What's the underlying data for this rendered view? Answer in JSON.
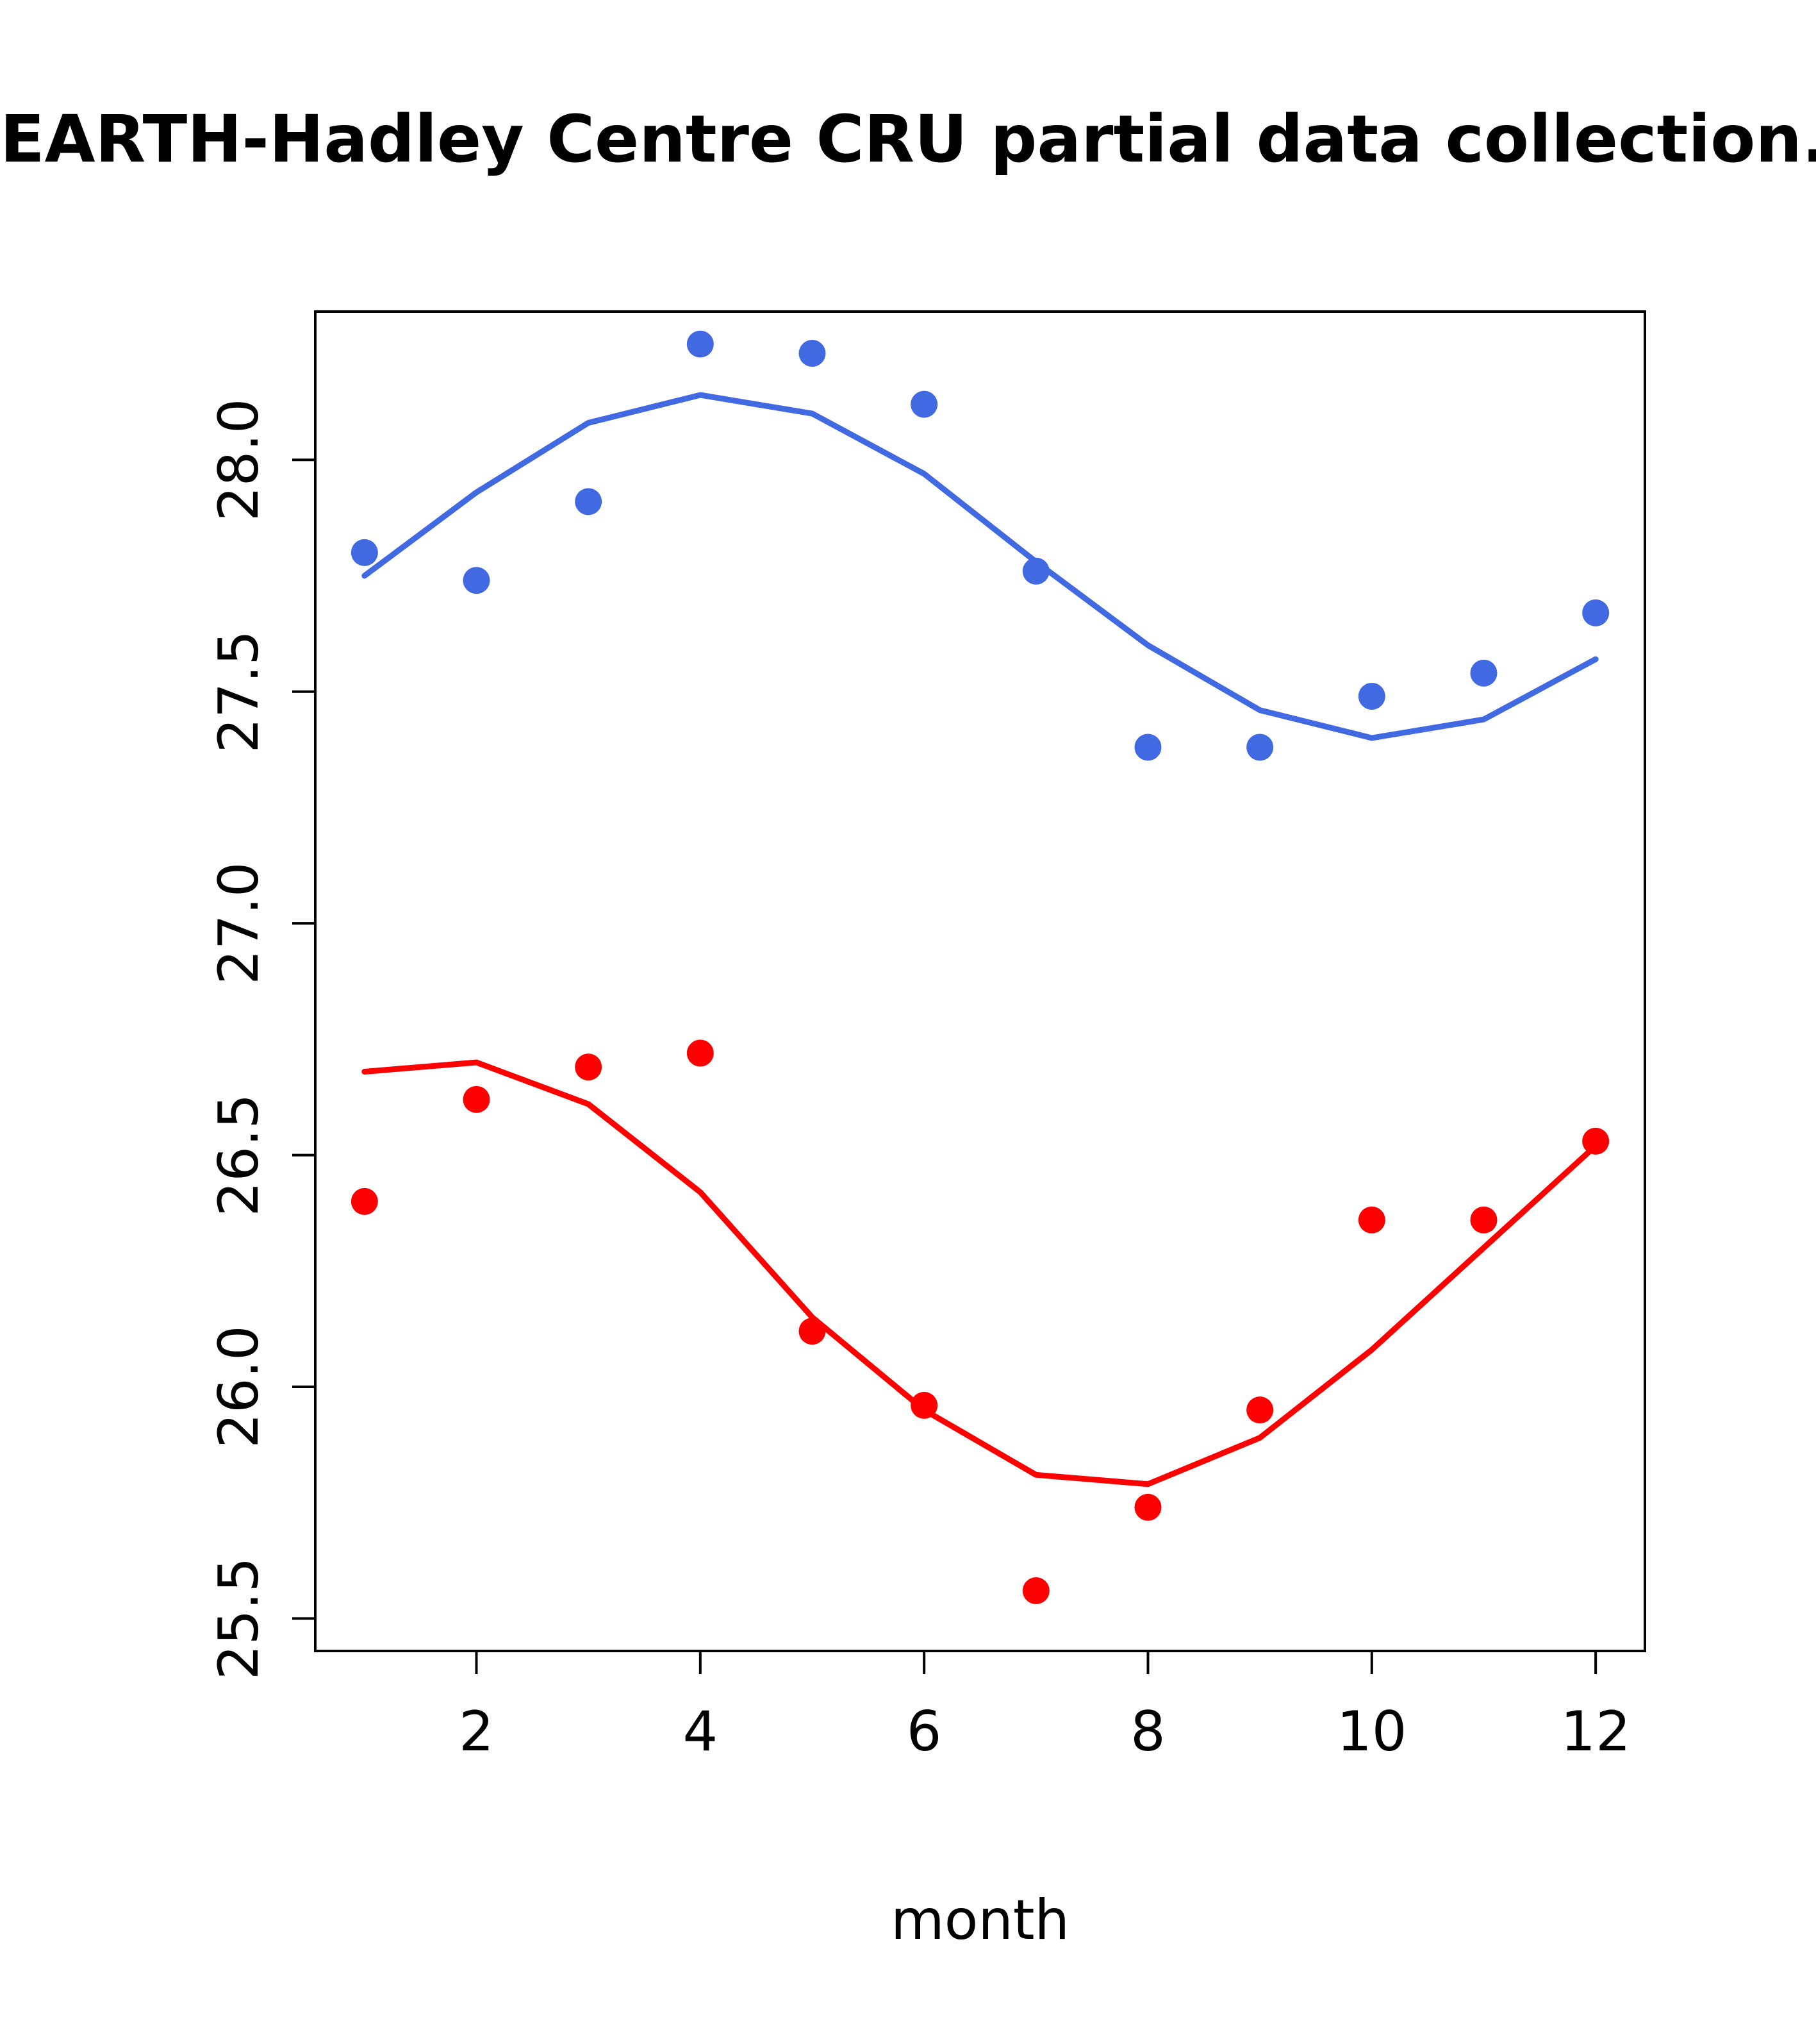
{
  "chart_data": {
    "type": "line",
    "title": "EARTH-Hadley Centre  CRU partial data collection.",
    "xlabel": "month",
    "ylabel": "",
    "x": [
      1,
      2,
      3,
      4,
      5,
      6,
      7,
      8,
      9,
      10,
      11,
      12
    ],
    "xticks": [
      2,
      4,
      6,
      8,
      10,
      12
    ],
    "yticks": [
      25.5,
      26.0,
      26.5,
      27.0,
      27.5,
      28.0
    ],
    "xlim": [
      0.56,
      12.44
    ],
    "ylim": [
      25.43,
      28.32
    ],
    "grid": false,
    "legend": "none",
    "colors": {
      "series1": "#4169E1",
      "series2": "#FF0000",
      "axis": "#000000",
      "background": "#FFFFFF"
    },
    "series": [
      {
        "name": "blue-smooth-line",
        "draw": "line",
        "color": "#4169E1",
        "values": [
          27.75,
          27.93,
          28.08,
          28.14,
          28.1,
          27.97,
          27.78,
          27.6,
          27.46,
          27.4,
          27.44,
          27.57
        ]
      },
      {
        "name": "red-smooth-line",
        "draw": "line",
        "color": "#FF0000",
        "values": [
          26.68,
          26.7,
          26.61,
          26.42,
          26.15,
          25.95,
          25.81,
          25.79,
          25.89,
          26.08,
          26.3,
          26.52
        ]
      },
      {
        "name": "blue-monthly-points",
        "draw": "scatter",
        "color": "#4169E1",
        "values": [
          27.8,
          27.74,
          27.91,
          28.25,
          28.23,
          28.12,
          27.76,
          27.38,
          27.38,
          27.49,
          27.54,
          27.67
        ]
      },
      {
        "name": "red-monthly-points",
        "draw": "scatter",
        "color": "#FF0000",
        "values": [
          26.4,
          26.62,
          26.69,
          26.72,
          26.12,
          25.96,
          25.56,
          25.74,
          25.95,
          26.36,
          26.36,
          26.53
        ]
      }
    ]
  }
}
